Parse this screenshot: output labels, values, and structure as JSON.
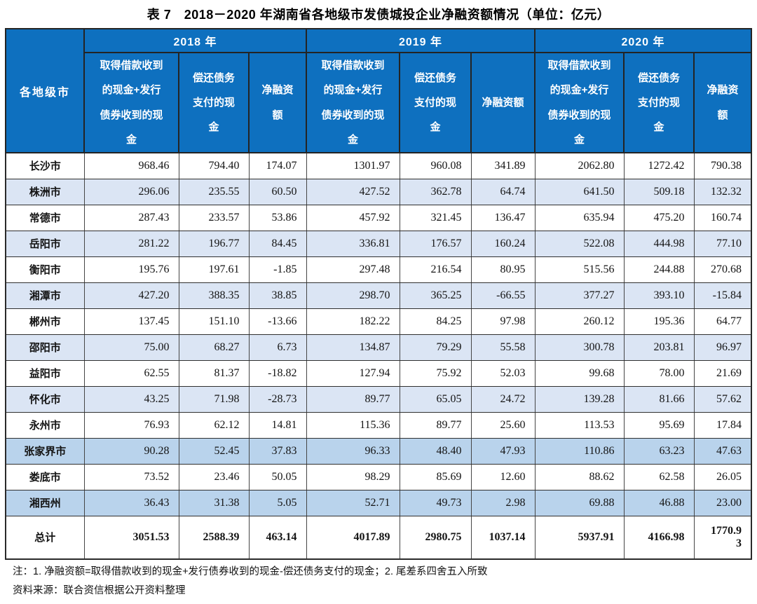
{
  "title": "表 7　2018－2020 年湖南省各地级市发债城投企业净融资额情况（单位：亿元）",
  "table": {
    "city_header": "各地级市",
    "year_groups": [
      {
        "year": "2018 年",
        "columns": [
          "取得借款收到\n的现金+发行\n债券收到的现\n金",
          "偿还债务\n支付的现\n金",
          "净融资\n额"
        ]
      },
      {
        "year": "2019 年",
        "columns": [
          "取得借款收到\n的现金+发行\n债券收到的现\n金",
          "偿还债务\n支付的现\n金",
          "净融资额"
        ]
      },
      {
        "year": "2020 年",
        "columns": [
          "取得借款收到\n的现金+发行\n债券收到的现\n金",
          "偿还债务\n支付的现\n金",
          "净融资\n额"
        ]
      }
    ],
    "rows": [
      {
        "city": "长沙市",
        "shade": "white",
        "values": [
          "968.46",
          "794.40",
          "174.07",
          "1301.97",
          "960.08",
          "341.89",
          "2062.80",
          "1272.42",
          "790.38"
        ]
      },
      {
        "city": "株洲市",
        "shade": "light",
        "values": [
          "296.06",
          "235.55",
          "60.50",
          "427.52",
          "362.78",
          "64.74",
          "641.50",
          "509.18",
          "132.32"
        ]
      },
      {
        "city": "常德市",
        "shade": "white",
        "values": [
          "287.43",
          "233.57",
          "53.86",
          "457.92",
          "321.45",
          "136.47",
          "635.94",
          "475.20",
          "160.74"
        ]
      },
      {
        "city": "岳阳市",
        "shade": "light",
        "values": [
          "281.22",
          "196.77",
          "84.45",
          "336.81",
          "176.57",
          "160.24",
          "522.08",
          "444.98",
          "77.10"
        ]
      },
      {
        "city": "衡阳市",
        "shade": "white",
        "values": [
          "195.76",
          "197.61",
          "-1.85",
          "297.48",
          "216.54",
          "80.95",
          "515.56",
          "244.88",
          "270.68"
        ]
      },
      {
        "city": "湘潭市",
        "shade": "light",
        "values": [
          "427.20",
          "388.35",
          "38.85",
          "298.70",
          "365.25",
          "-66.55",
          "377.27",
          "393.10",
          "-15.84"
        ]
      },
      {
        "city": "郴州市",
        "shade": "white",
        "values": [
          "137.45",
          "151.10",
          "-13.66",
          "182.22",
          "84.25",
          "97.98",
          "260.12",
          "195.36",
          "64.77"
        ]
      },
      {
        "city": "邵阳市",
        "shade": "light",
        "values": [
          "75.00",
          "68.27",
          "6.73",
          "134.87",
          "79.29",
          "55.58",
          "300.78",
          "203.81",
          "96.97"
        ]
      },
      {
        "city": "益阳市",
        "shade": "white",
        "values": [
          "62.55",
          "81.37",
          "-18.82",
          "127.94",
          "75.92",
          "52.03",
          "99.68",
          "78.00",
          "21.69"
        ]
      },
      {
        "city": "怀化市",
        "shade": "light",
        "values": [
          "43.25",
          "71.98",
          "-28.73",
          "89.77",
          "65.05",
          "24.72",
          "139.28",
          "81.66",
          "57.62"
        ]
      },
      {
        "city": "永州市",
        "shade": "white",
        "values": [
          "76.93",
          "62.12",
          "14.81",
          "115.36",
          "89.77",
          "25.60",
          "113.53",
          "95.69",
          "17.84"
        ]
      },
      {
        "city": "张家界市",
        "shade": "mid",
        "values": [
          "90.28",
          "52.45",
          "37.83",
          "96.33",
          "48.40",
          "47.93",
          "110.86",
          "63.23",
          "47.63"
        ]
      },
      {
        "city": "娄底市",
        "shade": "white",
        "values": [
          "73.52",
          "23.46",
          "50.05",
          "98.29",
          "85.69",
          "12.60",
          "88.62",
          "62.58",
          "26.05"
        ]
      },
      {
        "city": "湘西州",
        "shade": "mid",
        "values": [
          "36.43",
          "31.38",
          "5.05",
          "52.71",
          "49.73",
          "2.98",
          "69.88",
          "46.88",
          "23.00"
        ]
      }
    ],
    "total": {
      "label": "总计",
      "values": [
        "3051.53",
        "2588.39",
        "463.14",
        "4017.89",
        "2980.75",
        "1037.14",
        "5937.91",
        "4166.98",
        "1770.93"
      ]
    }
  },
  "notes": [
    "注：1. 净融资额=取得借款收到的现金+发行债券收到的现金-偿还债务支付的现金；2. 尾差系四舍五入所致",
    "资料来源：联合资信根据公开资料整理"
  ],
  "colors": {
    "header_blue": "#0e70bf",
    "row_light": "#dbe5f4",
    "row_mid": "#b9d3ec",
    "border_dark": "#2a2a2a"
  }
}
